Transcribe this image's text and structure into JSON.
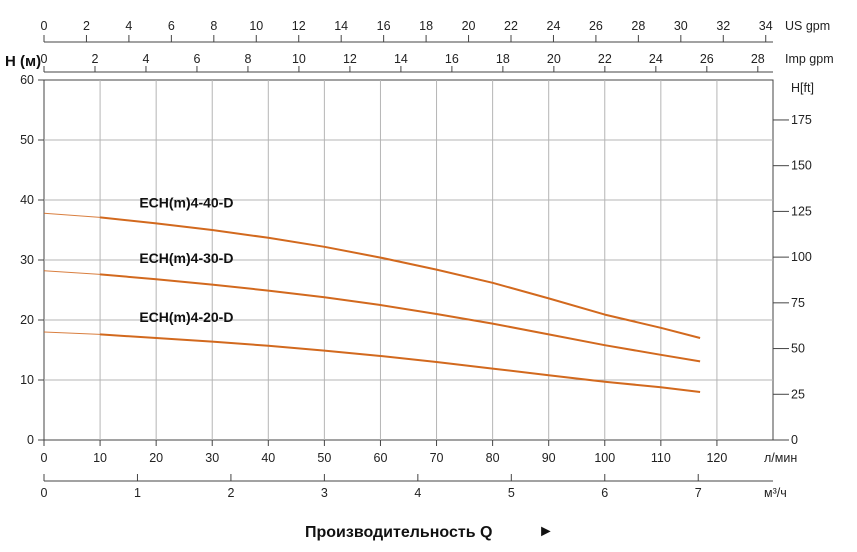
{
  "chart_data": {
    "type": "line",
    "x": [
      0,
      10,
      20,
      30,
      40,
      50,
      60,
      70,
      80,
      90,
      100,
      110,
      117
    ],
    "xlim": [
      0,
      130
    ],
    "ylim": [
      0,
      60
    ],
    "grid": true,
    "series": [
      {
        "name": "ECH(m)4-40-D",
        "values": [
          37.8,
          37.1,
          36.1,
          35.0,
          33.7,
          32.2,
          30.4,
          28.4,
          26.2,
          23.6,
          20.9,
          18.7,
          17.0
        ]
      },
      {
        "name": "ECH(m)4-30-D",
        "values": [
          28.2,
          27.6,
          26.8,
          25.9,
          24.9,
          23.8,
          22.5,
          21.0,
          19.4,
          17.6,
          15.8,
          14.2,
          13.1
        ]
      },
      {
        "name": "ECH(m)4-20-D",
        "values": [
          18.0,
          17.6,
          17.0,
          16.4,
          15.7,
          14.9,
          14.0,
          13.0,
          11.9,
          10.8,
          9.7,
          8.8,
          8.0
        ]
      }
    ],
    "series_color": "#d2691e",
    "y_axis": {
      "label": "H (м)",
      "ticks": [
        "0",
        "10",
        "20",
        "30",
        "40",
        "50",
        "60"
      ],
      "tick_values": [
        0,
        10,
        20,
        30,
        40,
        50,
        60
      ]
    },
    "y_axis_right": {
      "label": "H[ft]",
      "ticks": [
        "0",
        "25",
        "50",
        "75",
        "100",
        "125",
        "150",
        "175"
      ],
      "tick_values": [
        0,
        25,
        50,
        75,
        100,
        125,
        150,
        175
      ]
    },
    "x_axis_lmin": {
      "unit": "л/мин",
      "ticks": [
        "0",
        "10",
        "20",
        "30",
        "40",
        "50",
        "60",
        "70",
        "80",
        "90",
        "100",
        "110",
        "120"
      ],
      "tick_values": [
        0,
        10,
        20,
        30,
        40,
        50,
        60,
        70,
        80,
        90,
        100,
        110,
        120
      ]
    },
    "x_axis_m3h": {
      "unit": "м³/ч",
      "ticks": [
        "0",
        "1",
        "2",
        "3",
        "4",
        "5",
        "6",
        "7"
      ],
      "tick_values": [
        0,
        1,
        2,
        3,
        4,
        5,
        6,
        7
      ]
    },
    "x_axis_usgpm": {
      "unit": "US gpm",
      "ticks": [
        "0",
        "2",
        "4",
        "6",
        "8",
        "10",
        "12",
        "14",
        "16",
        "18",
        "20",
        "22",
        "24",
        "26",
        "28",
        "30",
        "32",
        "34"
      ],
      "tick_values": [
        0,
        2,
        4,
        6,
        8,
        10,
        12,
        14,
        16,
        18,
        20,
        22,
        24,
        26,
        28,
        30,
        32,
        34
      ]
    },
    "x_axis_impgpm": {
      "unit": "Imp gpm",
      "ticks": [
        "0",
        "2",
        "4",
        "6",
        "8",
        "10",
        "12",
        "14",
        "16",
        "18",
        "20",
        "22",
        "24",
        "26",
        "28"
      ],
      "tick_values": [
        0,
        2,
        4,
        6,
        8,
        10,
        12,
        14,
        16,
        18,
        20,
        22,
        24,
        26,
        28
      ]
    },
    "xlabel": "Производительность Q",
    "xlabel_arrow": "►"
  }
}
